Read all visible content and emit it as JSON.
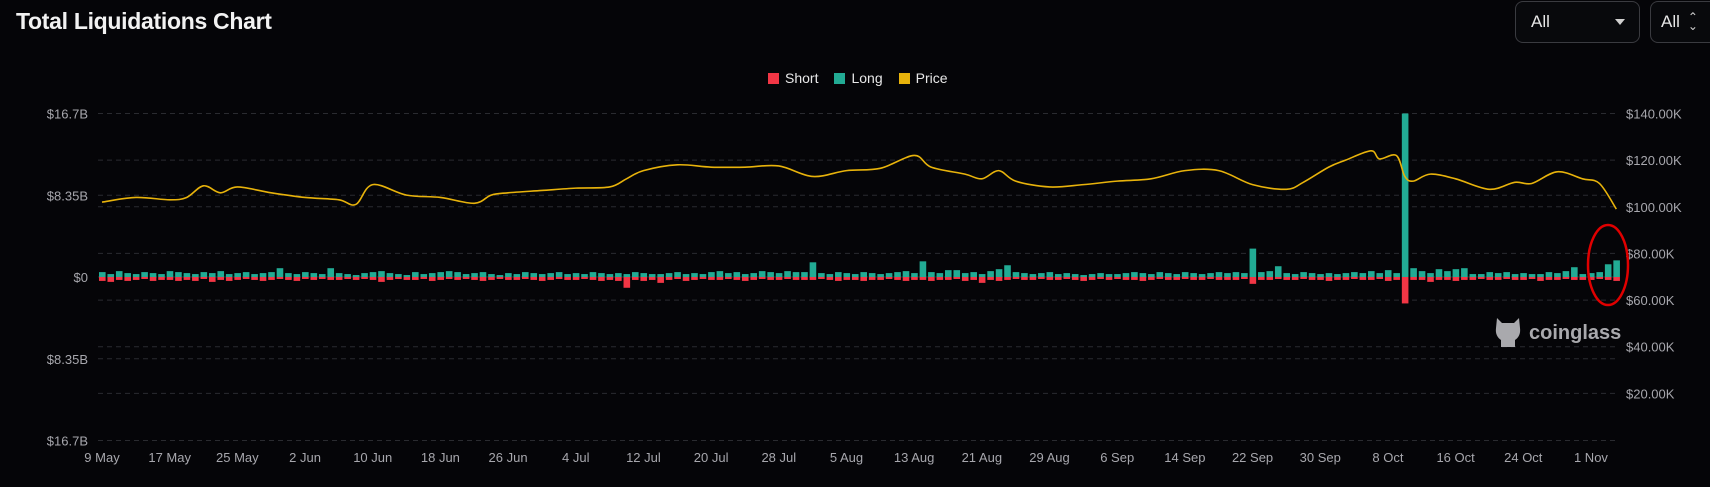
{
  "header": {
    "title": "Total Liquidations Chart",
    "filter_exchange": "All",
    "filter_coin": "All"
  },
  "colors": {
    "short": "#f23645",
    "long": "#22ab94",
    "price": "#e8b30b",
    "background": "#050508",
    "annotation": "#e00000"
  },
  "watermark": "coinglass",
  "chart_data": {
    "type": "bar",
    "title": "Total Liquidations Chart",
    "legend": [
      {
        "name": "Short",
        "color": "#f23645"
      },
      {
        "name": "Long",
        "color": "#22ab94"
      },
      {
        "name": "Price",
        "color": "#e8b30b"
      }
    ],
    "legend_position": "top",
    "grid": true,
    "x_ticks": [
      "9 May",
      "17 May",
      "25 May",
      "2 Jun",
      "10 Jun",
      "18 Jun",
      "26 Jun",
      "4 Jul",
      "12 Jul",
      "20 Jul",
      "28 Jul",
      "5 Aug",
      "13 Aug",
      "21 Aug",
      "29 Aug",
      "6 Sep",
      "14 Sep",
      "22 Sep",
      "30 Sep",
      "8 Oct",
      "16 Oct",
      "24 Oct",
      "1 Nov"
    ],
    "x_range": [
      "9 May",
      "5 Nov"
    ],
    "y_left_ticks": [
      "$16.7B",
      "$8.35B",
      "$0",
      "$8.35B",
      "$16.7B"
    ],
    "y_left_range_billion_usd": [
      -16.7,
      16.7
    ],
    "y_right_ticks": [
      "$140.00K",
      "$120.00K",
      "$100.00K",
      "$80.00K",
      "$60.00K",
      "$40.00K",
      "$20.00K"
    ],
    "y_right_range_thousand_usd": [
      0,
      140
    ],
    "series": [
      {
        "name": "Long",
        "unit": "billion USD",
        "direction": "up",
        "values": [
          0.5,
          0.3,
          0.6,
          0.4,
          0.3,
          0.5,
          0.4,
          0.3,
          0.6,
          0.5,
          0.4,
          0.3,
          0.5,
          0.4,
          0.6,
          0.3,
          0.4,
          0.5,
          0.3,
          0.4,
          0.5,
          0.9,
          0.4,
          0.3,
          0.5,
          0.4,
          0.3,
          0.9,
          0.4,
          0.3,
          0.2,
          0.4,
          0.5,
          0.6,
          0.4,
          0.3,
          0.2,
          0.5,
          0.3,
          0.4,
          0.5,
          0.6,
          0.5,
          0.3,
          0.4,
          0.5,
          0.3,
          0.2,
          0.4,
          0.3,
          0.5,
          0.4,
          0.3,
          0.4,
          0.5,
          0.3,
          0.4,
          0.3,
          0.5,
          0.4,
          0.3,
          0.4,
          0.3,
          0.5,
          0.4,
          0.3,
          0.3,
          0.4,
          0.5,
          0.3,
          0.4,
          0.3,
          0.5,
          0.6,
          0.4,
          0.5,
          0.3,
          0.4,
          0.6,
          0.5,
          0.4,
          0.6,
          0.5,
          0.5,
          1.5,
          0.4,
          0.3,
          0.5,
          0.4,
          0.3,
          0.5,
          0.4,
          0.3,
          0.4,
          0.5,
          0.6,
          0.4,
          1.6,
          0.5,
          0.4,
          0.7,
          0.7,
          0.4,
          0.5,
          0.3,
          0.6,
          0.8,
          1.2,
          0.5,
          0.4,
          0.3,
          0.4,
          0.5,
          0.3,
          0.4,
          0.3,
          0.2,
          0.3,
          0.4,
          0.3,
          0.3,
          0.4,
          0.5,
          0.4,
          0.3,
          0.5,
          0.4,
          0.3,
          0.5,
          0.4,
          0.3,
          0.4,
          0.5,
          0.4,
          0.5,
          0.4,
          2.9,
          0.5,
          0.6,
          1.1,
          0.4,
          0.3,
          0.5,
          0.4,
          0.3,
          0.4,
          0.3,
          0.4,
          0.5,
          0.4,
          0.6,
          0.4,
          0.7,
          0.4,
          16.7,
          0.9,
          0.6,
          0.4,
          0.8,
          0.6,
          0.8,
          0.9,
          0.3,
          0.3,
          0.5,
          0.4,
          0.5,
          0.3,
          0.4,
          0.3,
          0.3,
          0.5,
          0.4,
          0.6,
          1.0,
          0.3,
          0.4,
          0.5,
          1.3,
          1.7
        ]
      },
      {
        "name": "Short",
        "unit": "billion USD",
        "direction": "down",
        "values": [
          0.4,
          0.5,
          0.3,
          0.4,
          0.3,
          0.2,
          0.4,
          0.3,
          0.3,
          0.4,
          0.3,
          0.4,
          0.2,
          0.5,
          0.3,
          0.4,
          0.3,
          0.2,
          0.3,
          0.4,
          0.3,
          0.2,
          0.3,
          0.4,
          0.2,
          0.3,
          0.2,
          0.3,
          0.3,
          0.2,
          0.3,
          0.2,
          0.3,
          0.5,
          0.3,
          0.2,
          0.3,
          0.3,
          0.2,
          0.4,
          0.3,
          0.2,
          0.3,
          0.2,
          0.3,
          0.4,
          0.3,
          0.2,
          0.3,
          0.3,
          0.2,
          0.3,
          0.4,
          0.3,
          0.2,
          0.3,
          0.3,
          0.2,
          0.3,
          0.4,
          0.3,
          0.4,
          1.1,
          0.3,
          0.4,
          0.3,
          0.6,
          0.3,
          0.2,
          0.4,
          0.3,
          0.2,
          0.3,
          0.3,
          0.2,
          0.3,
          0.4,
          0.3,
          0.2,
          0.3,
          0.3,
          0.2,
          0.3,
          0.3,
          0.3,
          0.2,
          0.3,
          0.4,
          0.3,
          0.3,
          0.4,
          0.3,
          0.3,
          0.2,
          0.3,
          0.4,
          0.3,
          0.3,
          0.4,
          0.3,
          0.3,
          0.2,
          0.4,
          0.3,
          0.6,
          0.3,
          0.4,
          0.3,
          0.2,
          0.3,
          0.3,
          0.2,
          0.3,
          0.3,
          0.2,
          0.3,
          0.4,
          0.3,
          0.2,
          0.3,
          0.2,
          0.3,
          0.3,
          0.4,
          0.3,
          0.2,
          0.3,
          0.3,
          0.2,
          0.3,
          0.3,
          0.2,
          0.3,
          0.3,
          0.3,
          0.2,
          0.7,
          0.3,
          0.3,
          0.2,
          0.3,
          0.3,
          0.2,
          0.3,
          0.3,
          0.4,
          0.3,
          0.3,
          0.2,
          0.3,
          0.3,
          0.2,
          0.4,
          0.3,
          2.7,
          0.3,
          0.3,
          0.5,
          0.3,
          0.3,
          0.4,
          0.3,
          0.3,
          0.2,
          0.3,
          0.3,
          0.2,
          0.3,
          0.3,
          0.2,
          0.4,
          0.3,
          0.3,
          0.2,
          0.3,
          0.3,
          0.3,
          0.2,
          0.3,
          0.4
        ]
      },
      {
        "name": "Price",
        "unit": "thousand USD",
        "axis": "right",
        "type": "line",
        "points": [
          [
            "9 May",
            102
          ],
          [
            "13 May",
            104
          ],
          [
            "17 May",
            103
          ],
          [
            "19 May",
            104
          ],
          [
            "21 May",
            109
          ],
          [
            "23 May",
            106
          ],
          [
            "25 May",
            108.5
          ],
          [
            "29 May",
            106
          ],
          [
            "2 Jun",
            104
          ],
          [
            "6 Jun",
            103
          ],
          [
            "8 Jun",
            101
          ],
          [
            "10 Jun",
            109.5
          ],
          [
            "14 Jun",
            105
          ],
          [
            "18 Jun",
            104
          ],
          [
            "22 Jun",
            101.5
          ],
          [
            "24 Jun",
            105
          ],
          [
            "26 Jun",
            106
          ],
          [
            "30 Jun",
            107
          ],
          [
            "4 Jul",
            108
          ],
          [
            "8 Jul",
            108.5
          ],
          [
            "10 Jul",
            112
          ],
          [
            "12 Jul",
            115.5
          ],
          [
            "16 Jul",
            118
          ],
          [
            "20 Jul",
            117
          ],
          [
            "24 Jul",
            117
          ],
          [
            "28 Jul",
            117.5
          ],
          [
            "1 Aug",
            113
          ],
          [
            "5 Aug",
            115.5
          ],
          [
            "9 Aug",
            116.5
          ],
          [
            "13 Aug",
            122
          ],
          [
            "15 Aug",
            117
          ],
          [
            "19 Aug",
            114
          ],
          [
            "21 Aug",
            112
          ],
          [
            "23 Aug",
            115.5
          ],
          [
            "25 Aug",
            111
          ],
          [
            "29 Aug",
            108.5
          ],
          [
            "2 Sep",
            109.5
          ],
          [
            "6 Sep",
            111
          ],
          [
            "10 Sep",
            112
          ],
          [
            "14 Sep",
            115.5
          ],
          [
            "18 Sep",
            115.5
          ],
          [
            "22 Sep",
            109.5
          ],
          [
            "26 Sep",
            107.5
          ],
          [
            "28 Sep",
            110.5
          ],
          [
            "1 Oct",
            117
          ],
          [
            "3 Oct",
            120
          ],
          [
            "6 Oct",
            124
          ],
          [
            "7 Oct",
            120.5
          ],
          [
            "9 Oct",
            122
          ],
          [
            "10 Oct",
            113
          ],
          [
            "11 Oct",
            111
          ],
          [
            "13 Oct",
            114
          ],
          [
            "16 Oct",
            112
          ],
          [
            "20 Oct",
            107.5
          ],
          [
            "23 Oct",
            110.5
          ],
          [
            "25 Oct",
            110
          ],
          [
            "28 Oct",
            115
          ],
          [
            "31 Oct",
            112
          ],
          [
            "2 Nov",
            110
          ],
          [
            "4 Nov",
            99
          ]
        ]
      }
    ],
    "annotations": [
      {
        "type": "ellipse",
        "color": "#e00000",
        "around": [
          "3 Nov",
          "5 Nov"
        ]
      }
    ]
  }
}
